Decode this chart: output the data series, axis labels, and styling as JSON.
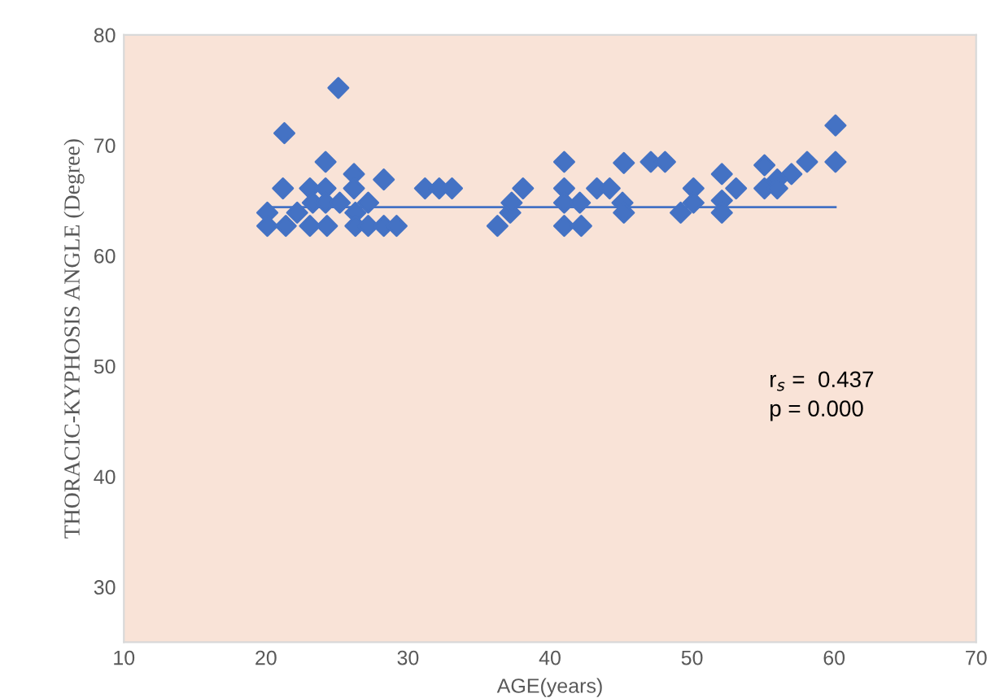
{
  "chart_data": {
    "type": "scatter",
    "xlabel": "AGE(years)",
    "ylabel": "THORACIC-KYPHOSIS ANGLE (Degree)",
    "xlim": [
      10,
      70
    ],
    "ylim": [
      25,
      80
    ],
    "xticks": [
      10,
      20,
      30,
      40,
      50,
      60,
      70
    ],
    "yticks": [
      30,
      40,
      50,
      60,
      70,
      80
    ],
    "grid": false,
    "marker": "diamond",
    "legend": false,
    "annotations": [
      "r$_{s}$ =  0.437",
      "p = 0.000"
    ],
    "series": [
      {
        "color": "#4472c4",
        "x": [
          20.1,
          20.1,
          21.3,
          21.2,
          21.4,
          22.2,
          23.1,
          23.1,
          23.3,
          24.2,
          24.2,
          24.3,
          24.2,
          25.1,
          25.2,
          26.2,
          26.2,
          26.3,
          26.3,
          27.2,
          27.2,
          28.3,
          28.3,
          29.2,
          31.2,
          32.2,
          33.1,
          36.3,
          37.2,
          37.3,
          38.1,
          41.0,
          41.0,
          41.0,
          41.0,
          42.1,
          42.2,
          43.3,
          44.2,
          45.2,
          45.1,
          45.2,
          47.1,
          48.1,
          49.2,
          50.1,
          50.1,
          52.1,
          52.1,
          52.1,
          53.1,
          55.1,
          55.1,
          56.0,
          56.0,
          57.0,
          58.1,
          60.1,
          60.1
        ],
        "values": [
          63.9,
          62.7,
          71.1,
          66.1,
          62.7,
          63.9,
          66.1,
          62.7,
          64.8,
          68.5,
          66.1,
          62.7,
          64.8,
          75.2,
          64.8,
          67.4,
          66.1,
          63.9,
          62.7,
          64.8,
          62.7,
          66.9,
          62.7,
          62.7,
          66.1,
          66.1,
          66.1,
          62.7,
          63.9,
          64.8,
          66.1,
          68.5,
          66.1,
          64.8,
          62.7,
          64.8,
          62.7,
          66.1,
          66.1,
          68.4,
          64.8,
          63.9,
          68.5,
          68.5,
          63.9,
          66.1,
          64.8,
          67.4,
          65.0,
          63.9,
          66.1,
          68.2,
          66.1,
          66.9,
          66.1,
          67.4,
          68.5,
          71.8,
          68.5
        ]
      },
      {
        "type": "line",
        "color": "#4472c4",
        "x": [
          20.1,
          60.1
        ],
        "values": [
          64.4,
          64.4
        ],
        "marker": "none"
      }
    ]
  }
}
